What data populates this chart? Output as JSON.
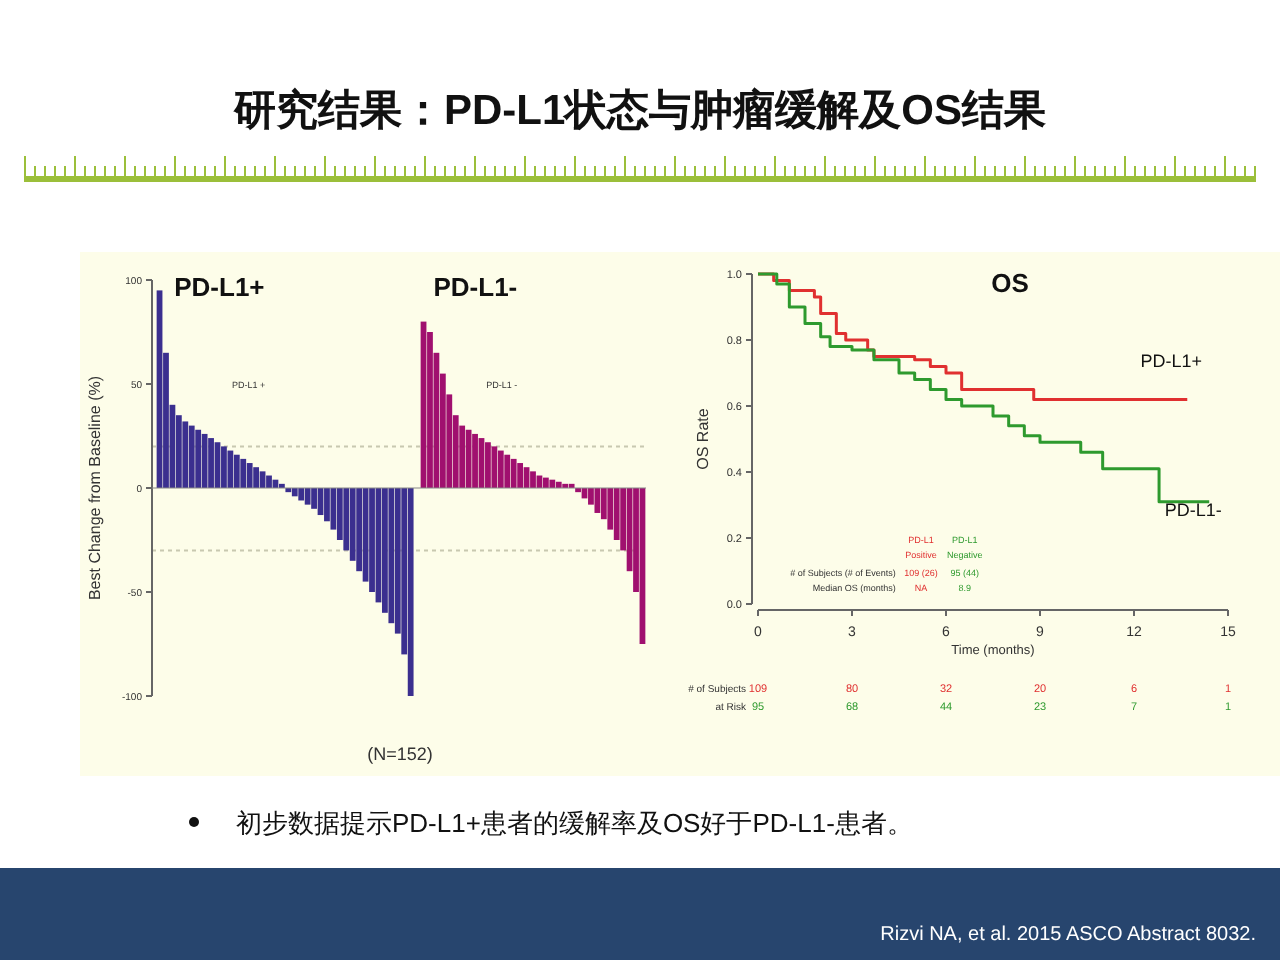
{
  "chart_data": [
    {
      "type": "other",
      "title": "研究结果：PD-L1状态与肿瘤缓解及OS结果",
      "annotations": [
        "初步数据提示PD-L1+患者的缓解率及OS好于PD-L1-患者。",
        "Rizvi NA, et al. 2015 ASCO Abstract 8032."
      ]
    },
    {
      "type": "bar",
      "ylabel": "Best Change from Baseline (%)",
      "ylim": [
        -100,
        100
      ],
      "yticks": [
        -100,
        -50,
        0,
        50,
        100
      ],
      "categories": [
        null,
        null,
        null,
        null,
        null,
        null,
        null,
        null,
        null,
        null,
        null,
        null,
        null,
        null,
        null,
        null,
        null,
        null,
        null,
        null,
        null,
        null,
        null,
        null,
        null,
        null,
        null,
        null,
        null,
        null,
        null,
        null,
        null,
        null,
        null,
        null,
        null,
        null,
        null,
        null,
        null,
        null,
        null,
        null,
        null,
        null,
        null,
        null,
        null,
        null,
        null,
        null,
        null,
        null,
        null,
        null,
        null,
        null,
        null,
        null,
        null,
        null,
        null,
        null,
        null,
        null,
        null,
        null,
        null,
        null,
        null,
        null,
        null,
        null,
        null,
        null
      ],
      "series": [
        {
          "name": "PD-L1+",
          "color": "#3b2f8f",
          "values": [
            95,
            65,
            40,
            35,
            32,
            30,
            28,
            26,
            24,
            22,
            20,
            18,
            16,
            14,
            12,
            10,
            8,
            6,
            4,
            2,
            -2,
            -4,
            -6,
            -8,
            -10,
            -13,
            -16,
            -20,
            -25,
            -30,
            -35,
            -40,
            -45,
            -50,
            -55,
            -60,
            -65,
            -70,
            -80,
            -100,
            null,
            null,
            null,
            null,
            null,
            null,
            null,
            null,
            null,
            null,
            null,
            null,
            null,
            null,
            null,
            null,
            null,
            null,
            null,
            null,
            null,
            null,
            null,
            null,
            null,
            null,
            null,
            null,
            null,
            null,
            null,
            null,
            null,
            null,
            null,
            null
          ]
        },
        {
          "name": "PD-L1-",
          "color": "#a0106f",
          "values": [
            null,
            null,
            null,
            null,
            null,
            null,
            null,
            null,
            null,
            null,
            null,
            null,
            null,
            null,
            null,
            null,
            null,
            null,
            null,
            null,
            null,
            null,
            null,
            null,
            null,
            null,
            null,
            null,
            null,
            null,
            null,
            null,
            null,
            null,
            null,
            null,
            null,
            null,
            null,
            null,
            null,
            80,
            75,
            65,
            55,
            45,
            35,
            30,
            28,
            26,
            24,
            22,
            20,
            18,
            16,
            14,
            12,
            10,
            8,
            6,
            5,
            4,
            3,
            2,
            2,
            -2,
            -5,
            -8,
            -12,
            -15,
            -20,
            -25,
            -30,
            -40,
            -50,
            -75
          ]
        }
      ],
      "ref_lines": [
        {
          "axis": "y",
          "value": 20,
          "color": "#c8c8b0",
          "line_style": "dotted"
        },
        {
          "axis": "y",
          "value": -30,
          "color": "#c8c8b0",
          "line_style": "dotted"
        }
      ],
      "annotations": [
        "PD-L1 +",
        "PD-L1 -",
        "(N=152)"
      ]
    },
    {
      "type": "step",
      "title": "OS",
      "xlabel": "Time (months)",
      "ylabel": "OS Rate",
      "xlim": [
        0,
        15
      ],
      "xticks": [
        0,
        3,
        6,
        9,
        12,
        15
      ],
      "ylim": [
        0,
        1
      ],
      "yticks": [
        {
          "value": 0,
          "label": "0.0"
        },
        {
          "value": 0.2,
          "label": "0.2"
        },
        {
          "value": 0.4,
          "label": "0.4"
        },
        {
          "value": 0.6,
          "label": "0.6"
        },
        {
          "value": 0.8,
          "label": "0.8"
        },
        {
          "value": 1,
          "label": "1.0"
        }
      ],
      "series": [
        {
          "name": "PD-L1+",
          "color": "#e03030",
          "x": [
            0,
            0.5,
            1,
            1.8,
            2,
            2.5,
            2.8,
            3.5,
            3.7,
            5,
            5.5,
            6,
            6.5,
            8.8,
            13.7
          ],
          "values": [
            1,
            0.98,
            0.95,
            0.93,
            0.88,
            0.82,
            0.8,
            0.77,
            0.75,
            0.74,
            0.72,
            0.7,
            0.65,
            0.62,
            0.62
          ]
        },
        {
          "name": "PD-L1-",
          "color": "#2e9a2e",
          "x": [
            0,
            0.6,
            1,
            1.5,
            2,
            2.3,
            3,
            3.7,
            4.5,
            5,
            5.5,
            6,
            6.5,
            7.5,
            8,
            8.5,
            9,
            10.3,
            11,
            12.8,
            14.4
          ],
          "values": [
            1,
            0.97,
            0.9,
            0.85,
            0.81,
            0.78,
            0.77,
            0.74,
            0.7,
            0.68,
            0.65,
            0.62,
            0.6,
            0.57,
            0.54,
            0.51,
            0.49,
            0.46,
            0.41,
            0.31,
            0.31
          ]
        }
      ],
      "annotations": [
        "PD-L1",
        "PD-L1",
        "Positive",
        "Negative",
        "# of Subjects (# of Events)",
        "109 (26)",
        "95 (44)",
        "Median OS (months)",
        "NA",
        "8.9",
        "# of Subjects",
        "at Risk",
        "109",
        "80",
        "32",
        "20",
        "6",
        "1",
        "95",
        "68",
        "44",
        "23",
        "7",
        "1"
      ]
    }
  ]
}
